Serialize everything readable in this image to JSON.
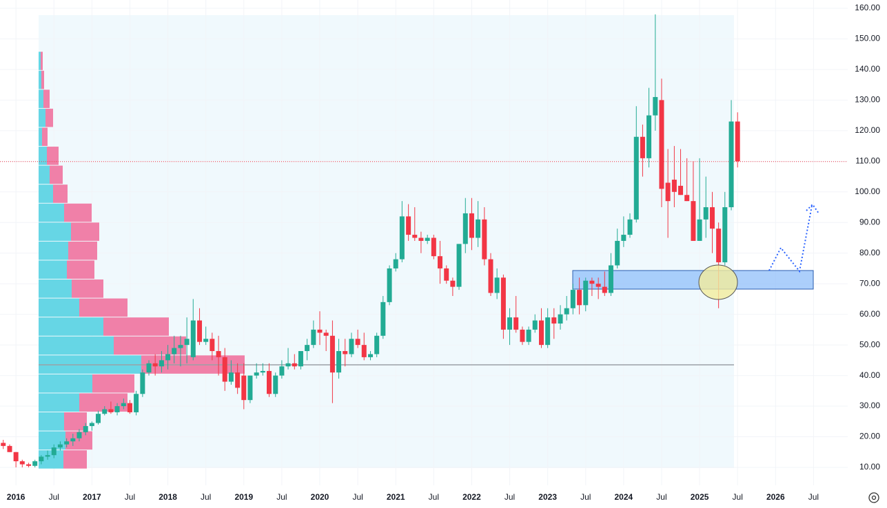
{
  "chart_data": {
    "type": "candlestick",
    "x": [
      2015.833,
      2015.917,
      2016.0,
      2016.083,
      2016.167,
      2016.25,
      2016.333,
      2016.417,
      2016.5,
      2016.583,
      2016.667,
      2016.75,
      2016.833,
      2016.917,
      2017.0,
      2017.083,
      2017.167,
      2017.25,
      2017.333,
      2017.417,
      2017.5,
      2017.583,
      2017.667,
      2017.75,
      2017.833,
      2017.917,
      2018.0,
      2018.083,
      2018.167,
      2018.25,
      2018.333,
      2018.417,
      2018.5,
      2018.583,
      2018.667,
      2018.75,
      2018.833,
      2018.917,
      2019.0,
      2019.083,
      2019.167,
      2019.25,
      2019.333,
      2019.417,
      2019.5,
      2019.583,
      2019.667,
      2019.75,
      2019.833,
      2019.917,
      2020.0,
      2020.083,
      2020.167,
      2020.25,
      2020.333,
      2020.417,
      2020.5,
      2020.583,
      2020.667,
      2020.75,
      2020.833,
      2020.917,
      2021.0,
      2021.083,
      2021.167,
      2021.25,
      2021.333,
      2021.417,
      2021.5,
      2021.583,
      2021.667,
      2021.75,
      2021.833,
      2021.917,
      2022.0,
      2022.083,
      2022.167,
      2022.25,
      2022.333,
      2022.417,
      2022.5,
      2022.583,
      2022.667,
      2022.75,
      2022.833,
      2022.917,
      2023.0,
      2023.083,
      2023.167,
      2023.25,
      2023.333,
      2023.417,
      2023.5,
      2023.583,
      2023.667,
      2023.75,
      2023.833,
      2023.917,
      2024.0,
      2024.083,
      2024.167,
      2024.25,
      2024.333,
      2024.417,
      2024.5,
      2024.583,
      2024.667,
      2024.75,
      2024.833,
      2024.917,
      2025.0,
      2025.083,
      2025.167,
      2025.25,
      2025.333,
      2025.417,
      2025.5
    ],
    "open": [
      18,
      17,
      15,
      12,
      11,
      10.5,
      12,
      13.5,
      14,
      16.5,
      17.5,
      18.5,
      19.5,
      21.5,
      23.5,
      24.5,
      27.5,
      29,
      28,
      30,
      31,
      28,
      34,
      41,
      44,
      43,
      45,
      47,
      49,
      50,
      46,
      58,
      51,
      52,
      48,
      46,
      38,
      41,
      40,
      32,
      40,
      41,
      41.5,
      34,
      40,
      43,
      44,
      43,
      48,
      50,
      55,
      54,
      53,
      41,
      48,
      47,
      52,
      50,
      46,
      47,
      53,
      64,
      75,
      78,
      92,
      86,
      85,
      84,
      85,
      79,
      75,
      71,
      69,
      83,
      93,
      85,
      91,
      78,
      67,
      72,
      55,
      59,
      55,
      51,
      55,
      58,
      50,
      59,
      57,
      60,
      62,
      68,
      63,
      71,
      70,
      69,
      67,
      76,
      84,
      86,
      91,
      118,
      111,
      125,
      130,
      103,
      104,
      102,
      99,
      97,
      84,
      91,
      95,
      88,
      77,
      95,
      123
    ],
    "high": [
      19,
      17.5,
      15,
      12.5,
      11.5,
      12.5,
      14,
      15.5,
      17.5,
      18.5,
      19.5,
      21,
      22.5,
      24.5,
      25,
      28.5,
      30,
      31.5,
      31,
      32.5,
      32,
      35,
      42,
      45,
      47,
      48,
      50,
      53,
      53,
      59,
      65,
      62,
      56,
      54,
      53,
      49,
      45,
      44,
      44,
      40,
      44,
      44,
      44,
      41,
      45,
      49,
      47,
      48,
      52,
      58,
      61,
      55,
      58,
      52,
      52,
      54,
      55,
      54,
      48,
      54,
      66,
      76,
      80,
      97,
      96,
      95,
      87,
      86,
      86,
      84,
      76,
      72,
      83,
      98,
      98,
      97,
      95,
      80,
      75,
      73,
      62,
      66,
      56,
      56,
      60,
      62,
      62,
      62,
      63,
      66,
      70,
      72,
      72,
      72,
      72,
      74,
      80,
      88,
      92,
      93,
      128,
      122,
      134,
      158,
      137,
      114,
      115,
      114,
      111,
      110,
      111,
      105,
      100,
      90,
      100,
      130,
      126
    ],
    "low": [
      16,
      15,
      10,
      10,
      10,
      10,
      11,
      12.5,
      13,
      15.5,
      16.5,
      17,
      18.5,
      20.5,
      22,
      24,
      27,
      27.5,
      27,
      29,
      27.5,
      27,
      33,
      40,
      40,
      41,
      42,
      44,
      43,
      44,
      45,
      50,
      50,
      45,
      40,
      35,
      37,
      34,
      29,
      31,
      39,
      40,
      33,
      33,
      39,
      42,
      42,
      42,
      45,
      49,
      50,
      48,
      31,
      39,
      43,
      46,
      49,
      45,
      45,
      46,
      52,
      63,
      74,
      77,
      84,
      84,
      80,
      83,
      78,
      70,
      70,
      66,
      68,
      80,
      81,
      82,
      76,
      66,
      65,
      52,
      50,
      54,
      50,
      50,
      54,
      49,
      49,
      52,
      55,
      58,
      60,
      60,
      61,
      66,
      65,
      66,
      66,
      75,
      82,
      85,
      90,
      105,
      108,
      120,
      95,
      85,
      95,
      99,
      97,
      84,
      84,
      85,
      80,
      62,
      76,
      94,
      108
    ],
    "close": [
      17,
      15,
      12,
      11,
      10.5,
      12,
      13.5,
      14,
      16.5,
      17.5,
      18.5,
      19.5,
      21.5,
      23.5,
      24.5,
      27.5,
      29,
      28,
      30,
      31,
      28,
      34,
      41,
      44,
      43,
      45,
      47,
      49,
      50,
      52,
      58,
      51,
      52,
      48,
      46,
      38,
      41,
      36,
      32,
      40,
      41,
      41.5,
      34,
      40,
      43,
      44,
      43,
      48,
      50,
      55,
      54,
      53,
      41,
      48,
      47,
      52,
      50,
      46,
      47,
      53,
      64,
      75,
      78,
      92,
      86,
      85,
      84,
      85,
      79,
      75,
      71,
      69,
      83,
      93,
      85,
      91,
      78,
      67,
      72,
      55,
      59,
      55,
      51,
      55,
      58,
      50,
      59,
      57,
      60,
      62,
      68,
      63,
      71,
      70,
      69,
      67,
      76,
      84,
      86,
      91,
      118,
      111,
      125,
      131,
      101,
      97,
      100,
      99,
      97,
      84,
      91,
      95,
      88,
      77,
      95,
      123,
      110
    ],
    "up_color": "#22ab94",
    "down_color": "#f23645",
    "xlim": [
      2015.79,
      2026.95
    ],
    "ylim": [
      4.15,
      162.7
    ],
    "xticks": [
      2016,
      {
        "value": 2016.5,
        "label": "Jul"
      },
      2017,
      {
        "value": 2017.5,
        "label": "Jul"
      },
      2018,
      {
        "value": 2018.5,
        "label": "Jul"
      },
      2019,
      {
        "value": 2019.5,
        "label": "Jul"
      },
      2020,
      {
        "value": 2020.5,
        "label": "Jul"
      },
      2021,
      {
        "value": 2021.5,
        "label": "Jul"
      },
      2022,
      {
        "value": 2022.5,
        "label": "Jul"
      },
      2023,
      {
        "value": 2023.5,
        "label": "Jul"
      },
      2024,
      {
        "value": 2024.5,
        "label": "Jul"
      },
      2025,
      {
        "value": 2025.5,
        "label": "Jul"
      },
      2026,
      {
        "value": 2026.5,
        "label": "Jul"
      }
    ],
    "yticks": [
      {
        "value": 10,
        "label": "10.00"
      },
      {
        "value": 20,
        "label": "20.00"
      },
      {
        "value": 30,
        "label": "30.00"
      },
      {
        "value": 40,
        "label": "40.00"
      },
      {
        "value": 50,
        "label": "50.00"
      },
      {
        "value": 60,
        "label": "60.00"
      },
      {
        "value": 70,
        "label": "70.00"
      },
      {
        "value": 80,
        "label": "80.00"
      },
      {
        "value": 90,
        "label": "90.00"
      },
      {
        "value": 100,
        "label": "100.00"
      },
      {
        "value": 110,
        "label": "110.00"
      },
      {
        "value": 120,
        "label": "120.00"
      },
      {
        "value": 130,
        "label": "130.00"
      },
      {
        "value": 140,
        "label": "140.00"
      },
      {
        "value": 150,
        "label": "150.00"
      },
      {
        "value": 160,
        "label": "160.00"
      }
    ],
    "grid": true,
    "last_price": 109.9,
    "last_price_color": "#f23645",
    "poc": 43.5,
    "volume_profile": {
      "bins": [
        9.5,
        15.7,
        21.9,
        28.1,
        34.3,
        40.5,
        46.7,
        52.9,
        59.1,
        65.3,
        71.5,
        77.7,
        83.9,
        90.1,
        96.3,
        102.5,
        108.7,
        114.9,
        121.1,
        127.3,
        133.5,
        139.7,
        145.9
      ],
      "up": [
        36,
        39,
        37,
        59,
        78,
        149,
        109,
        94,
        59,
        48,
        41,
        43,
        47,
        37,
        21,
        16,
        12,
        5,
        10,
        7,
        4,
        3
      ],
      "down": [
        34,
        39,
        33,
        70,
        61,
        150,
        105,
        95,
        70,
        46,
        40,
        42,
        41,
        40,
        21,
        19,
        17,
        8,
        11,
        9,
        4,
        3
      ],
      "up_color": "#4dd0e1",
      "down_color": "#f06292"
    }
  }
}
